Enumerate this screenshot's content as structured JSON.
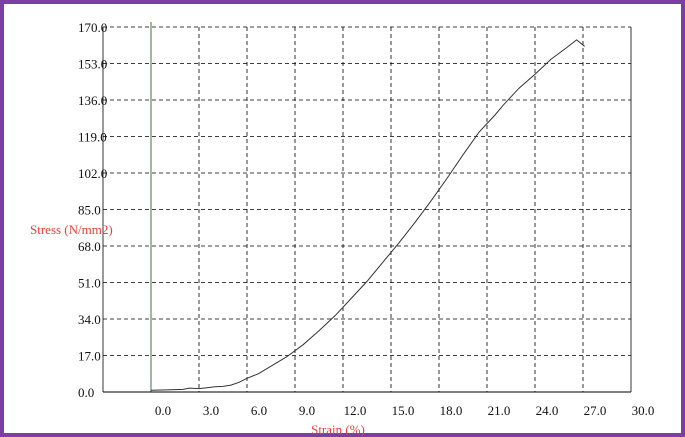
{
  "colors": {
    "frame": "#7b3fa4",
    "axis_label": "#e8413d",
    "grid": "#000000",
    "curve": "#333333",
    "y_axis_line": "#3f6f4a"
  },
  "chart_data": {
    "type": "line",
    "title": "",
    "xlabel": "Strain (%)",
    "ylabel": "Stress (N/mm2)",
    "xlim": [
      -3,
      30
    ],
    "ylim": [
      0,
      170
    ],
    "x_ticks": [
      "0.0",
      "3.0",
      "6.0",
      "9.0",
      "12.0",
      "15.0",
      "18.0",
      "21.0",
      "24.0",
      "27.0",
      "30.0"
    ],
    "y_ticks": [
      "0.0",
      "17.0",
      "34.0",
      "51.0",
      "68.0",
      "85.0",
      "102.0",
      "119.0",
      "136.0",
      "153.0",
      "170.0"
    ],
    "grid": true,
    "legend": "none",
    "x": [
      0,
      1,
      2,
      2.4,
      3,
      3.5,
      4,
      4.5,
      5,
      5.5,
      6,
      6.7,
      7.5,
      8.5,
      9.5,
      10.5,
      11.5,
      12.5,
      13.5,
      14.5,
      15.5,
      16.5,
      17.5,
      18.5,
      19.5,
      20.5,
      21.5,
      22,
      22.5,
      23,
      24,
      25,
      26,
      26.6,
      27.1
    ],
    "y": [
      0.8,
      1.0,
      1.2,
      1.8,
      1.6,
      2.0,
      2.4,
      2.6,
      3.2,
      4.5,
      6.4,
      8.5,
      12.0,
      16.5,
      22.0,
      28.5,
      35.5,
      43.5,
      51.5,
      60.5,
      69.5,
      79.0,
      89.0,
      99.5,
      110.5,
      121.0,
      129.0,
      133.5,
      137.5,
      141.5,
      148.0,
      155.0,
      160.5,
      164.0,
      161.0
    ]
  }
}
